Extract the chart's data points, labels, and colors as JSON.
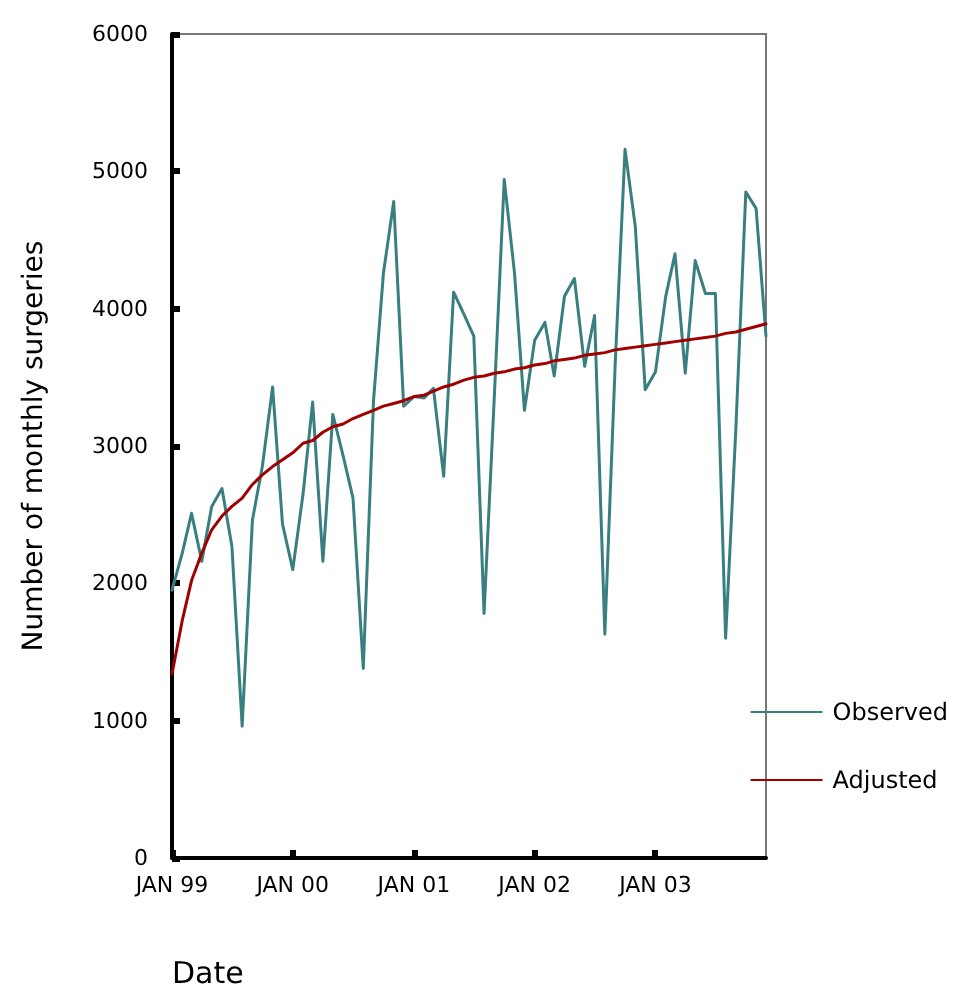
{
  "chart_data": {
    "type": "line",
    "xlabel": "Date",
    "ylabel": "Number of monthly surgeries",
    "x": [
      "1999-01",
      "1999-02",
      "1999-03",
      "1999-04",
      "1999-05",
      "1999-06",
      "1999-07",
      "1999-08",
      "1999-09",
      "1999-10",
      "1999-11",
      "1999-12",
      "2000-01",
      "2000-02",
      "2000-03",
      "2000-04",
      "2000-05",
      "2000-06",
      "2000-07",
      "2000-08",
      "2000-09",
      "2000-10",
      "2000-11",
      "2000-12",
      "2001-01",
      "2001-02",
      "2001-03",
      "2001-04",
      "2001-05",
      "2001-06",
      "2001-07",
      "2001-08",
      "2001-09",
      "2001-10",
      "2001-11",
      "2001-12",
      "2002-01",
      "2002-02",
      "2002-03",
      "2002-04",
      "2002-05",
      "2002-06",
      "2002-07",
      "2002-08",
      "2002-09",
      "2002-10",
      "2002-11",
      "2002-12",
      "2003-01",
      "2003-02",
      "2003-03",
      "2003-04",
      "2003-05",
      "2003-06",
      "2003-07",
      "2003-08",
      "2003-09",
      "2003-10",
      "2003-11",
      "2003-12"
    ],
    "series": [
      {
        "name": "Observed",
        "color": "#3a7f7f",
        "values": [
          1950,
          2220,
          2510,
          2160,
          2560,
          2690,
          2270,
          960,
          2460,
          2850,
          3430,
          2430,
          2100,
          2650,
          3320,
          2160,
          3230,
          2930,
          2620,
          1380,
          3330,
          4260,
          4780,
          3290,
          3360,
          3350,
          3420,
          2780,
          4120,
          3960,
          3800,
          1780,
          3360,
          4940,
          4260,
          3260,
          3770,
          3900,
          3510,
          4090,
          4220,
          3580,
          3950,
          1630,
          3580,
          5160,
          4600,
          3410,
          3540,
          4090,
          4400,
          3530,
          4350,
          4110,
          4110,
          1600,
          3130,
          4850,
          4730,
          3800
        ]
      },
      {
        "name": "Adjusted",
        "color": "#a00000",
        "values": [
          1340,
          1730,
          2020,
          2220,
          2390,
          2490,
          2560,
          2620,
          2720,
          2790,
          2850,
          2900,
          2950,
          3020,
          3040,
          3100,
          3140,
          3160,
          3200,
          3230,
          3260,
          3290,
          3310,
          3330,
          3360,
          3370,
          3400,
          3430,
          3450,
          3480,
          3500,
          3510,
          3530,
          3540,
          3560,
          3570,
          3590,
          3600,
          3620,
          3630,
          3640,
          3660,
          3670,
          3680,
          3700,
          3710,
          3720,
          3730,
          3740,
          3750,
          3760,
          3770,
          3780,
          3790,
          3800,
          3820,
          3830,
          3850,
          3870,
          3890
        ]
      }
    ],
    "xlim": [
      "1999-01",
      "2003-12"
    ],
    "xticks": [
      {
        "value": "1999-01",
        "label": "JAN 99"
      },
      {
        "value": "2000-01",
        "label": "JAN 00"
      },
      {
        "value": "2001-01",
        "label": "JAN 01"
      },
      {
        "value": "2002-01",
        "label": "JAN 02"
      },
      {
        "value": "2003-01",
        "label": "JAN 03"
      }
    ],
    "ylim": [
      0,
      6000
    ],
    "yticks": [
      0,
      1000,
      2000,
      3000,
      4000,
      5000,
      6000
    ],
    "grid": false,
    "legend": "right",
    "marker": "none",
    "line_style": "solid"
  }
}
